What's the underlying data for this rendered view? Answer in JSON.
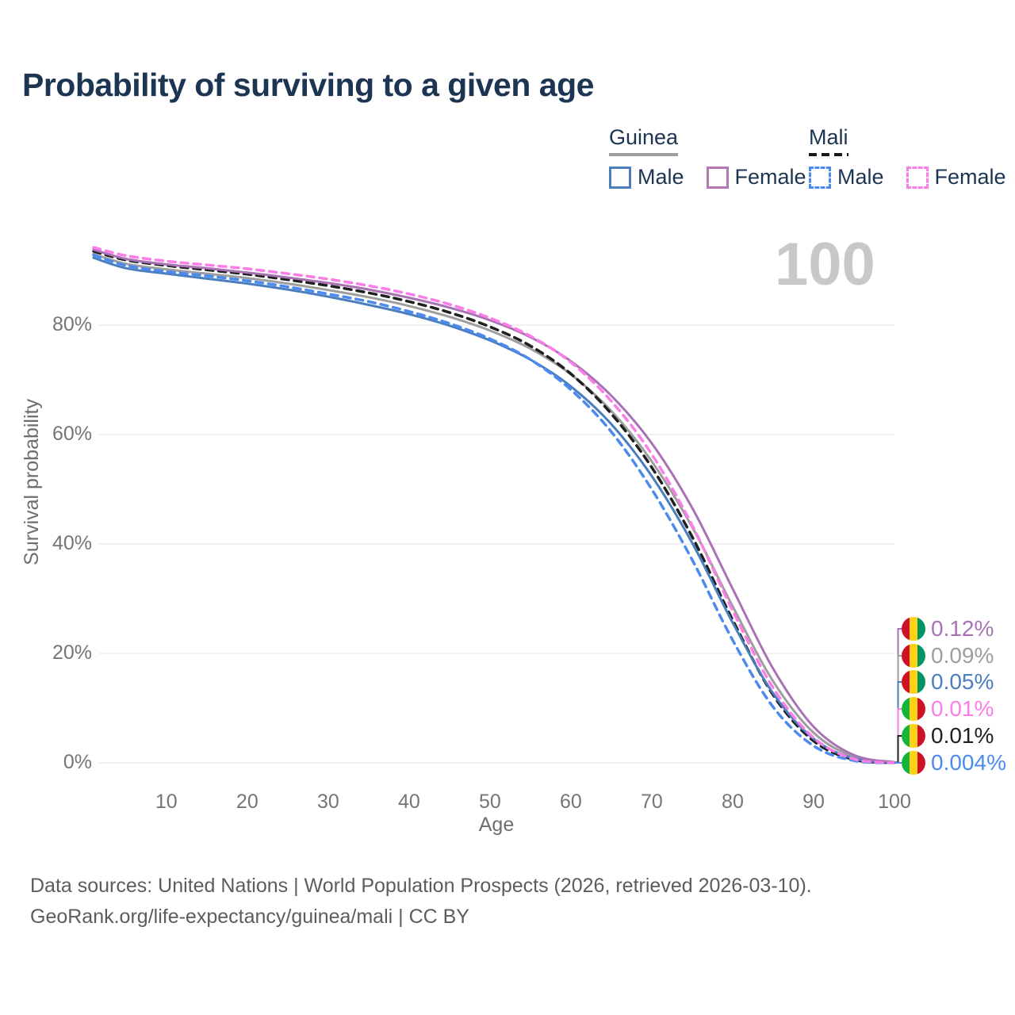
{
  "title": "Probability of surviving to a given age",
  "watermark": "100",
  "legend": {
    "groups": [
      {
        "name": "Guinea",
        "underline_color": "#9e9e9e",
        "underline_style": "solid",
        "items": [
          {
            "label": "Male",
            "color": "#4a7ebf",
            "style": "solid"
          },
          {
            "label": "Female",
            "color": "#b379b3",
            "style": "solid"
          }
        ]
      },
      {
        "name": "Mali",
        "underline_color": "#1a1a1a",
        "underline_style": "dashed",
        "items": [
          {
            "label": "Male",
            "color": "#4d8af0",
            "style": "dashed"
          },
          {
            "label": "Female",
            "color": "#fb7de7",
            "style": "dashed"
          }
        ]
      }
    ]
  },
  "chart_data": {
    "type": "line",
    "title": "Probability of surviving to a given age",
    "xlabel": "Age",
    "ylabel": "Survival probability",
    "xlim": [
      1,
      100
    ],
    "ylim": [
      0,
      100
    ],
    "grid": "horizontal",
    "x": [
      1,
      5,
      10,
      15,
      20,
      25,
      30,
      35,
      40,
      45,
      50,
      55,
      60,
      65,
      70,
      75,
      80,
      85,
      90,
      95,
      100
    ],
    "x_ticks": [
      10,
      20,
      30,
      40,
      50,
      60,
      70,
      80,
      90,
      100
    ],
    "y_ticks": [
      {
        "value": 0,
        "label": "0%"
      },
      {
        "value": 20,
        "label": "20%"
      },
      {
        "value": 40,
        "label": "40%"
      },
      {
        "value": 60,
        "label": "60%"
      },
      {
        "value": 80,
        "label": "80%"
      }
    ],
    "series": [
      {
        "name": "Guinea Total",
        "country": "Guinea",
        "sex": "total",
        "color": "#9e9e9e",
        "dash": "solid",
        "values": [
          93.0,
          91.2,
          90.2,
          89.4,
          88.6,
          87.6,
          86.4,
          85.1,
          83.5,
          81.5,
          79.0,
          75.7,
          71.0,
          64.3,
          55.1,
          43.1,
          28.6,
          14.9,
          5.5,
          1.1,
          0.09
        ]
      },
      {
        "name": "Mali Total",
        "country": "Mali",
        "sex": "total",
        "color": "#202020",
        "dash": "dashed",
        "values": [
          93.5,
          91.9,
          90.9,
          90.1,
          89.3,
          88.3,
          87.2,
          85.9,
          84.3,
          82.3,
          79.7,
          76.2,
          71.1,
          63.8,
          54.0,
          41.3,
          26.1,
          12.4,
          4.0,
          0.6,
          0.01
        ]
      },
      {
        "name": "Guinea Male",
        "country": "Guinea",
        "sex": "male",
        "color": "#4a7ebf",
        "dash": "solid",
        "values": [
          92.3,
          90.4,
          89.4,
          88.5,
          87.6,
          86.5,
          85.2,
          83.7,
          82.0,
          79.9,
          77.2,
          73.7,
          68.8,
          61.9,
          52.4,
          40.2,
          25.6,
          12.7,
          4.4,
          0.8,
          0.05
        ]
      },
      {
        "name": "Mali Male",
        "country": "Mali",
        "sex": "male",
        "color": "#4d8af0",
        "dash": "dashed",
        "values": [
          92.8,
          90.9,
          89.8,
          89.0,
          88.1,
          87.0,
          85.7,
          84.3,
          82.5,
          80.3,
          77.5,
          73.7,
          68.2,
          60.5,
          50.0,
          37.1,
          22.4,
          10.2,
          3.1,
          0.4,
          0.004
        ]
      },
      {
        "name": "Guinea Female",
        "country": "Guinea",
        "sex": "female",
        "color": "#a872b4",
        "dash": "solid",
        "values": [
          93.8,
          92.1,
          91.1,
          90.4,
          89.6,
          88.7,
          87.7,
          86.5,
          85.0,
          83.2,
          80.9,
          77.8,
          73.4,
          67.1,
          58.4,
          46.6,
          31.8,
          17.2,
          6.6,
          1.4,
          0.12
        ]
      },
      {
        "name": "Mali Female",
        "country": "Mali",
        "sex": "female",
        "color": "#fb7de7",
        "dash": "dashed",
        "values": [
          94.2,
          92.7,
          91.7,
          91.0,
          90.3,
          89.4,
          88.4,
          87.2,
          85.7,
          83.8,
          81.3,
          78.0,
          73.2,
          66.1,
          56.4,
          43.4,
          27.8,
          13.7,
          4.6,
          0.7,
          0.01
        ]
      }
    ],
    "end_labels": [
      {
        "text": "0.12%",
        "color": "#a872b4",
        "flag": "guinea",
        "series": "Guinea Female"
      },
      {
        "text": "0.09%",
        "color": "#9e9e9e",
        "flag": "guinea",
        "series": "Guinea Total"
      },
      {
        "text": "0.05%",
        "color": "#4a7ebf",
        "flag": "guinea",
        "series": "Guinea Male"
      },
      {
        "text": "0.01%",
        "color": "#fb7de7",
        "flag": "mali",
        "series": "Mali Female"
      },
      {
        "text": "0.01%",
        "color": "#202020",
        "flag": "mali",
        "series": "Mali Total"
      },
      {
        "text": "0.004%",
        "color": "#4d8af0",
        "flag": "mali",
        "series": "Mali Male"
      }
    ],
    "legend_position": "top-right"
  },
  "flags": {
    "guinea": [
      "#ce1126",
      "#fcd116",
      "#009460"
    ],
    "mali": [
      "#14b53a",
      "#fcd116",
      "#ce1126"
    ]
  },
  "footer": {
    "line1": "Data sources: United Nations | World Population Prospects (2026, retrieved 2026-03-10).",
    "line2": "GeoRank.org/life-expectancy/guinea/mali | CC BY"
  }
}
